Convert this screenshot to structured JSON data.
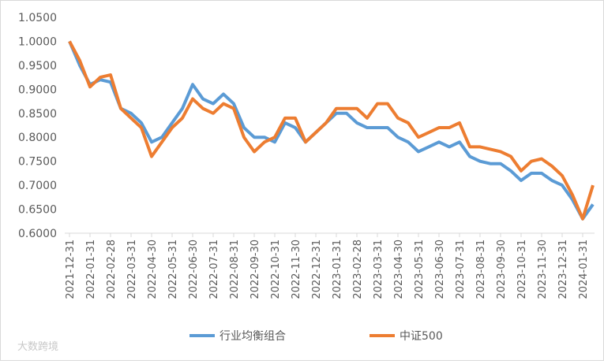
{
  "chart_data": {
    "type": "line",
    "categories": [
      "2021-12-31",
      null,
      "2022-01-31",
      null,
      "2022-02-28",
      null,
      "2022-03-31",
      null,
      "2022-04-30",
      null,
      "2022-05-31",
      null,
      "2022-06-30",
      null,
      "2022-07-31",
      null,
      "2022-08-31",
      null,
      "2022-09-30",
      null,
      "2022-10-31",
      null,
      "2022-11-30",
      null,
      "2022-12-31",
      null,
      "2023-01-31",
      null,
      "2023-02-28",
      null,
      "2023-03-31",
      null,
      "2023-04-30",
      null,
      "2023-05-31",
      null,
      "2023-06-30",
      null,
      "2023-07-31",
      null,
      "2023-08-31",
      null,
      "2023-09-30",
      null,
      "2023-10-31",
      null,
      "2023-11-30",
      null,
      "2023-12-31",
      null,
      "2024-01-31",
      null
    ],
    "series": [
      {
        "name": "行业均衡组合",
        "color": "#5b9bd5",
        "values": [
          1.0,
          0.95,
          0.91,
          0.92,
          0.915,
          0.86,
          0.85,
          0.83,
          0.79,
          0.8,
          0.83,
          0.86,
          0.91,
          0.88,
          0.87,
          0.89,
          0.87,
          0.82,
          0.8,
          0.8,
          0.79,
          0.83,
          0.82,
          0.79,
          0.81,
          0.83,
          0.85,
          0.85,
          0.83,
          0.82,
          0.82,
          0.82,
          0.8,
          0.79,
          0.77,
          0.78,
          0.79,
          0.78,
          0.79,
          0.76,
          0.75,
          0.745,
          0.745,
          0.73,
          0.71,
          0.725,
          0.725,
          0.71,
          0.7,
          0.67,
          0.63,
          0.66
        ]
      },
      {
        "name": "中证500",
        "color": "#ed7d31",
        "values": [
          1.0,
          0.96,
          0.905,
          0.925,
          0.93,
          0.86,
          0.84,
          0.82,
          0.76,
          0.79,
          0.82,
          0.84,
          0.88,
          0.86,
          0.85,
          0.87,
          0.86,
          0.8,
          0.77,
          0.79,
          0.8,
          0.84,
          0.84,
          0.79,
          0.81,
          0.83,
          0.86,
          0.86,
          0.86,
          0.84,
          0.87,
          0.87,
          0.84,
          0.83,
          0.8,
          0.81,
          0.82,
          0.82,
          0.83,
          0.78,
          0.78,
          0.775,
          0.77,
          0.76,
          0.73,
          0.75,
          0.755,
          0.74,
          0.72,
          0.68,
          0.63,
          0.7
        ]
      }
    ],
    "ylim": [
      0.6,
      1.05
    ],
    "yticks": [
      {
        "value": 0.6,
        "label": "0.6000"
      },
      {
        "value": 0.65,
        "label": "0.6500"
      },
      {
        "value": 0.7,
        "label": "0.7000"
      },
      {
        "value": 0.75,
        "label": "0.7500"
      },
      {
        "value": 0.8,
        "label": "0.8000"
      },
      {
        "value": 0.85,
        "label": "0.8500"
      },
      {
        "value": 0.9,
        "label": "0.9000"
      },
      {
        "value": 0.95,
        "label": "0.9500"
      },
      {
        "value": 1.0,
        "label": "1.0000"
      },
      {
        "value": 1.05,
        "label": "1.0500"
      }
    ],
    "legend": "bottom",
    "watermark": "大数跨境"
  }
}
